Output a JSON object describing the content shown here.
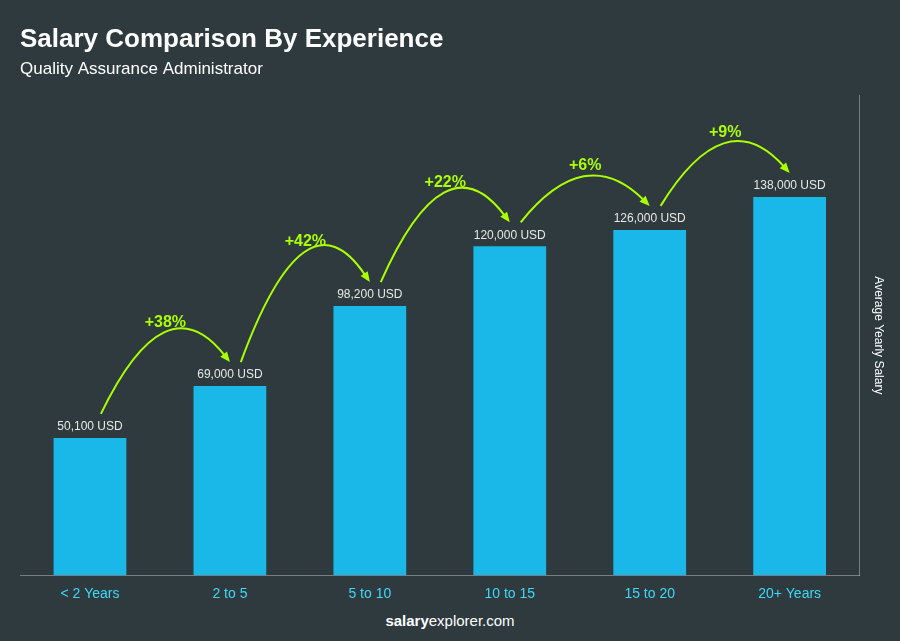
{
  "chart_data": {
    "type": "bar",
    "title": "Salary Comparison By Experience",
    "subtitle": "Quality Assurance Administrator",
    "categories": [
      "< 2 Years",
      "2 to 5",
      "5 to 10",
      "10 to 15",
      "15 to 20",
      "20+ Years"
    ],
    "values": [
      50100,
      69000,
      98200,
      120000,
      126000,
      138000
    ],
    "value_labels": [
      "50,100 USD",
      "69,000 USD",
      "98,200 USD",
      "120,000 USD",
      "126,000 USD",
      "138,000 USD"
    ],
    "data_labels": true,
    "color": "#1ab8e8",
    "ylabel": "Average Yearly Salary",
    "ylim": [
      0,
      175000
    ],
    "grid": false,
    "tick_labels": "x",
    "annotations": [
      {
        "text": "+38%",
        "color": "#aaff00"
      },
      {
        "text": "+42%",
        "color": "#aaff00"
      },
      {
        "text": "+22%",
        "color": "#aaff00"
      },
      {
        "text": "+6%",
        "color": "#aaff00"
      },
      {
        "text": "+9%",
        "color": "#aaff00"
      }
    ],
    "footer": [
      "salary",
      "explorer.com"
    ]
  }
}
